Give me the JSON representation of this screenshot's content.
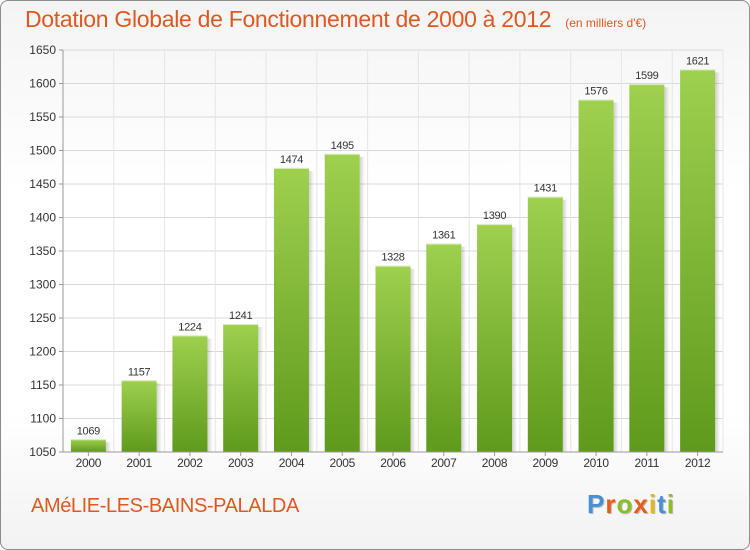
{
  "header": {
    "title": "Dotation Globale de Fonctionnement de 2000 à 2012",
    "unit_note": "(en milliers d'€)"
  },
  "footer": {
    "commune": "AMéLIE-LES-BAINS-PALALDA",
    "logo_text": "Proxiti",
    "logo_colors": [
      "#4a8fd6",
      "#e85b1c",
      "#8bbf2a",
      "#e85b1c",
      "#e3b81e",
      "#4a8fd6",
      "#8bbf2a"
    ]
  },
  "chart_data": {
    "type": "bar",
    "title": "Dotation Globale de Fonctionnement de 2000 à 2012",
    "subtitle": "(en milliers d'€)",
    "xlabel": "",
    "ylabel": "",
    "categories": [
      "2000",
      "2001",
      "2002",
      "2003",
      "2004",
      "2005",
      "2006",
      "2007",
      "2008",
      "2009",
      "2010",
      "2011",
      "2012"
    ],
    "values": [
      1069,
      1157,
      1224,
      1241,
      1474,
      1495,
      1328,
      1361,
      1390,
      1431,
      1576,
      1599,
      1621
    ],
    "ylim": [
      1050,
      1650
    ],
    "yticks": [
      1050,
      1100,
      1150,
      1200,
      1250,
      1300,
      1350,
      1400,
      1450,
      1500,
      1550,
      1600,
      1650
    ],
    "grid": true,
    "bar_color_light": "#9fd04f",
    "bar_color_dark": "#5f9a1c"
  }
}
